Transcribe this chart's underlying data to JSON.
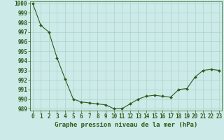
{
  "x": [
    0,
    1,
    2,
    3,
    4,
    5,
    6,
    7,
    8,
    9,
    10,
    11,
    12,
    13,
    14,
    15,
    16,
    17,
    18,
    19,
    20,
    21,
    22,
    23
  ],
  "y": [
    1000,
    997.7,
    997.0,
    994.3,
    992.1,
    990.0,
    989.7,
    989.6,
    989.5,
    989.4,
    989.0,
    989.0,
    989.5,
    990.0,
    990.3,
    990.4,
    990.3,
    990.2,
    991.0,
    991.1,
    992.3,
    993.0,
    993.1,
    993.0
  ],
  "ylim": [
    989,
    1000
  ],
  "xlim": [
    -0.3,
    23.3
  ],
  "yticks": [
    989,
    990,
    991,
    992,
    993,
    994,
    995,
    996,
    997,
    998,
    999,
    1000
  ],
  "xticks": [
    0,
    1,
    2,
    3,
    4,
    5,
    6,
    7,
    8,
    9,
    10,
    11,
    12,
    13,
    14,
    15,
    16,
    17,
    18,
    19,
    20,
    21,
    22,
    23
  ],
  "xlabel": "Graphe pression niveau de la mer (hPa)",
  "line_color": "#2d5a1b",
  "marker": "D",
  "marker_size": 2.0,
  "bg_color": "#cceae7",
  "grid_color": "#aad4cc",
  "tick_label_color": "#2d5a1b",
  "xlabel_color": "#2d5a1b",
  "xlabel_fontsize": 6.5,
  "tick_fontsize": 5.5
}
